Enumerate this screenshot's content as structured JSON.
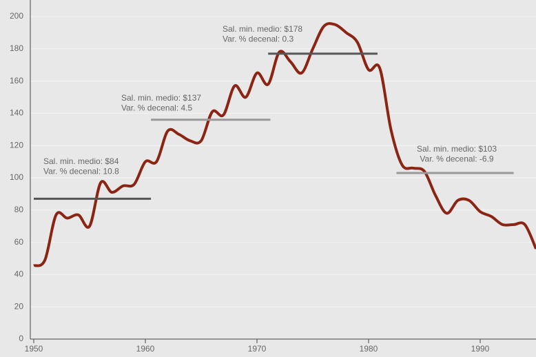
{
  "chart_data": {
    "type": "line",
    "x": [
      1950,
      1951,
      1952,
      1953,
      1954,
      1955,
      1956,
      1957,
      1958,
      1959,
      1960,
      1961,
      1962,
      1963,
      1964,
      1965,
      1966,
      1967,
      1968,
      1969,
      1970,
      1971,
      1972,
      1973,
      1974,
      1975,
      1976,
      1977,
      1978,
      1979,
      1980,
      1981,
      1982,
      1983,
      1984,
      1985,
      1986,
      1987,
      1988,
      1989,
      1990,
      1991,
      1992,
      1993,
      1994,
      1995
    ],
    "series": [
      {
        "color": "#8b2413",
        "values": [
          45.5,
          49,
          77,
          75,
          77,
          70,
          97,
          91,
          95,
          96,
          110,
          110,
          129,
          127,
          123,
          123,
          141,
          139,
          157,
          150,
          165,
          158,
          178,
          172,
          165,
          180,
          194,
          195,
          190,
          184,
          167,
          168,
          130,
          108,
          106,
          104,
          89,
          78,
          86,
          86,
          79,
          76,
          71,
          71,
          71,
          56
        ]
      }
    ],
    "xlim": [
      1950,
      1995
    ],
    "xticks": [
      1950,
      1960,
      1970,
      1980,
      1990
    ],
    "ylim": [
      0,
      200
    ],
    "yticks": [
      0,
      20,
      40,
      60,
      80,
      100,
      120,
      140,
      160,
      180,
      200
    ],
    "grid": true,
    "segments": [
      {
        "lines": [
          "Sal. min. medio: $84",
          "Var. % decenal: 10.8"
        ],
        "value": 87,
        "x": [
          1950,
          1960.5
        ],
        "color": "#555555"
      },
      {
        "lines": [
          "Sal. min. medio: $137",
          "Var. % decenal: 4.5"
        ],
        "value": 136,
        "x": [
          1960.5,
          1971.2
        ],
        "color": "#999999"
      },
      {
        "lines": [
          "Sal. min. medio: $178",
          "Var. % decenal: 0.3"
        ],
        "value": 177,
        "x": [
          1971,
          1980.8
        ],
        "color": "#555555"
      },
      {
        "lines": [
          "Sal. min. medio: $103",
          "Var. % decenal: -6.9"
        ],
        "value": 103,
        "x": [
          1982.5,
          1993
        ],
        "color": "#999999"
      }
    ]
  }
}
